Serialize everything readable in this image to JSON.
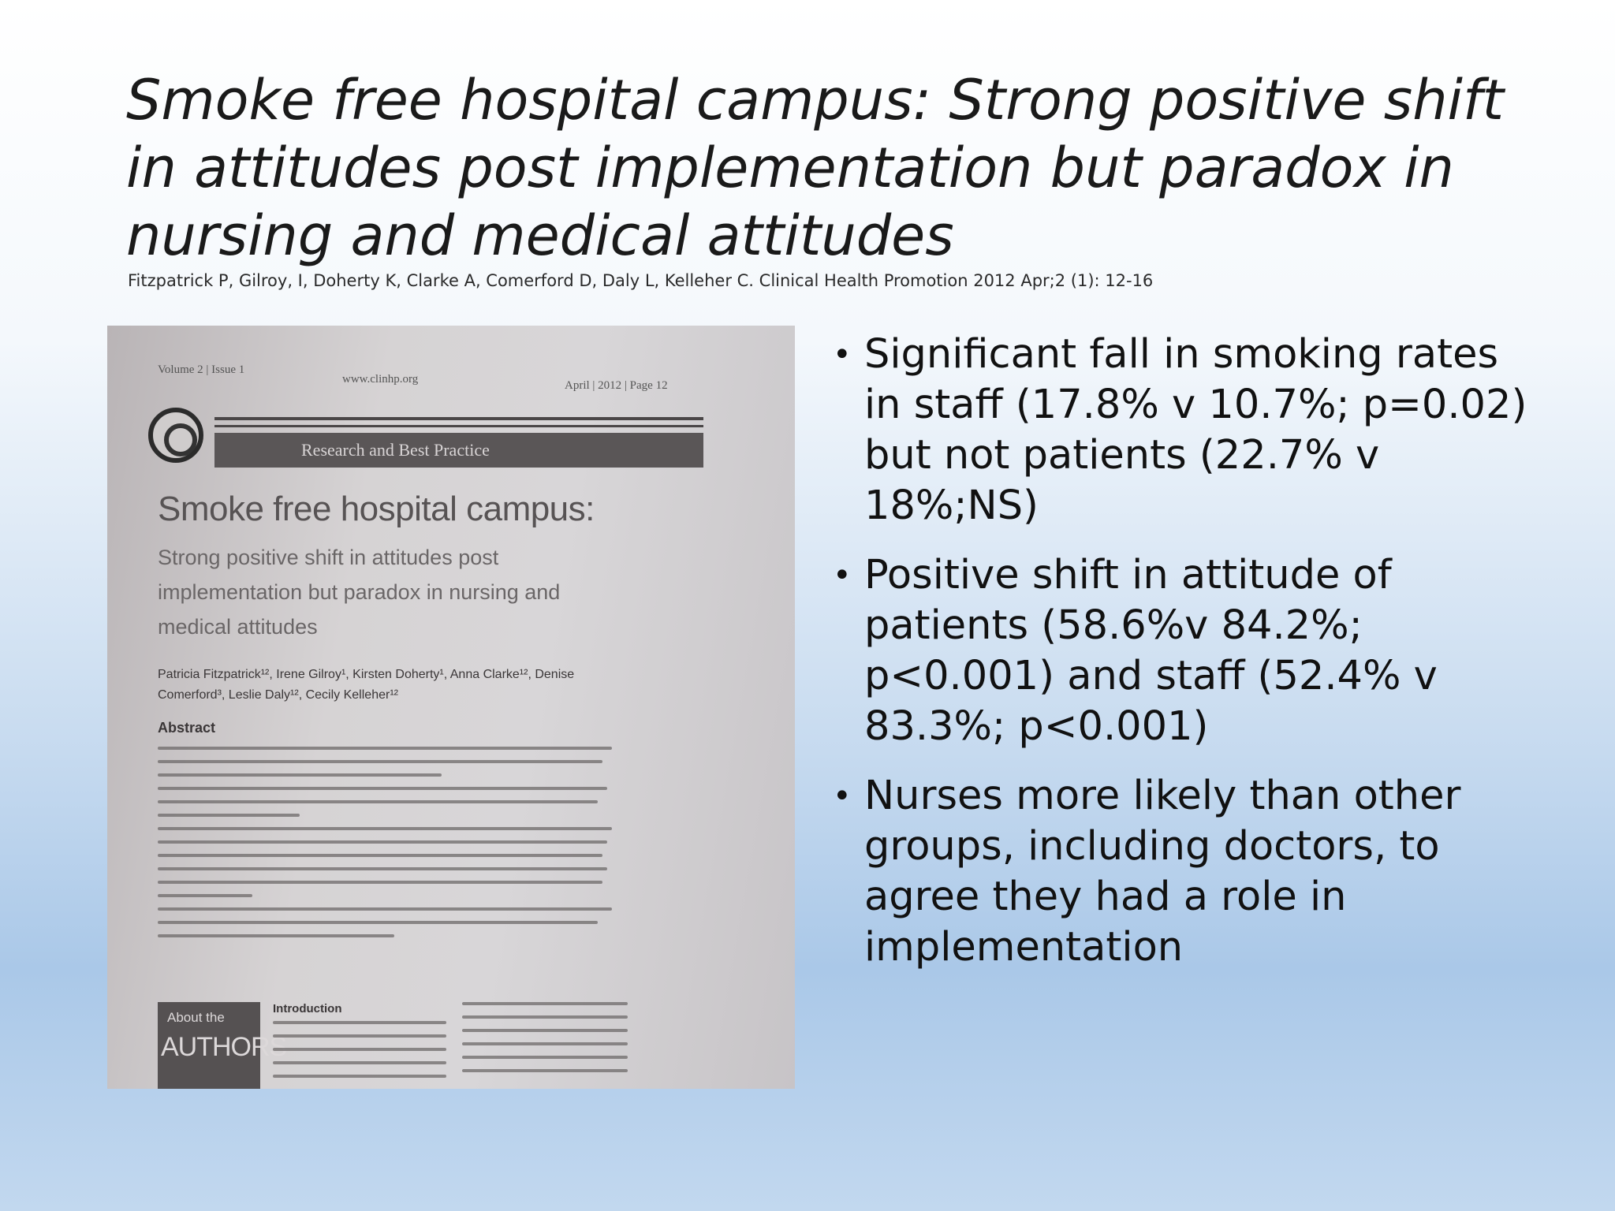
{
  "slide": {
    "title": "Smoke free hospital campus: Strong positive shift in attitudes post implementation but paradox in nursing and medical attitudes",
    "citation": "Fitzpatrick P, Gilroy, I, Doherty K, Clarke A, Comerford  D, Daly L, Kelleher C. Clinical Health Promotion 2012 Apr;2 (1): 12-16"
  },
  "article_photo": {
    "volume": "Volume 2 | Issue 1",
    "website": "www.clinhp.org",
    "date_page": "April | 2012 | Page 12",
    "section": "Research and Best Practice",
    "title": "Smoke free hospital campus:",
    "subtitle": "Strong positive shift in attitudes post implementation but paradox in nursing and medical attitudes",
    "authors": "Patricia Fitzpatrick¹², Irene Gilroy¹, Kirsten Doherty¹, Anna Clarke¹², Denise Comerford³, Leslie Daly¹², Cecily Kelleher¹²",
    "abstract_heading": "Abstract",
    "about_line1": "About the",
    "about_line2": "AUTHORS",
    "intro_heading": "Introduction"
  },
  "bullets": [
    "Significant fall in smoking rates in staff (17.8% v 10.7%; p=0.02) but not patients (22.7% v 18%;NS)",
    "Positive shift in attitude of patients (58.6%v 84.2%; p<0.001) and staff (52.4% v 83.3%; p<0.001)",
    "Nurses more likely than other groups, including doctors, to agree they had a role in implementation"
  ]
}
